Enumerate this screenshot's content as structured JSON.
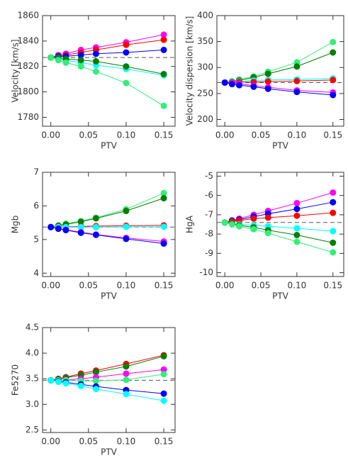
{
  "chart_data": [
    {
      "type": "line",
      "xlabel": "PTV",
      "ylabel": "Velocity [km/s]",
      "x": [
        0,
        0.01,
        0.02,
        0.04,
        0.06,
        0.1,
        0.15
      ],
      "xlim": [
        -0.011,
        0.165
      ],
      "xticks": [
        {
          "value": 0,
          "label": "0.00"
        },
        0.05,
        {
          "value": 0.1,
          "label": "0.10"
        },
        0.15
      ],
      "ylim": [
        1773,
        1860
      ],
      "yticks": [
        1780,
        1800,
        1820,
        1840,
        1860
      ],
      "hline": 1827,
      "series": [
        {
          "color": "#ff00ff",
          "values": [
            1827,
            1829,
            1830,
            1833,
            1835,
            1839,
            1845
          ]
        },
        {
          "color": "#ff0000",
          "values": [
            1827,
            1828,
            1829,
            1831,
            1833,
            1837,
            1841
          ]
        },
        {
          "color": "#0000ff",
          "values": [
            1827,
            1828,
            1828,
            1829,
            1830,
            1831,
            1833
          ]
        },
        {
          "color": "#00ffff",
          "values": [
            1827,
            1826,
            1825,
            1823,
            1821,
            1818,
            1813
          ]
        },
        {
          "color": "#008000",
          "values": [
            1827,
            1827,
            1826,
            1825,
            1824,
            1820,
            1814
          ]
        },
        {
          "color": "#33ee77",
          "values": [
            1827,
            1825,
            1823,
            1820,
            1816,
            1807,
            1789
          ]
        }
      ]
    },
    {
      "type": "line",
      "xlabel": "PTV",
      "ylabel": "Velocity dispersion [km/s]",
      "x": [
        0,
        0.01,
        0.02,
        0.04,
        0.06,
        0.1,
        0.15
      ],
      "xlim": [
        -0.011,
        0.165
      ],
      "xticks": [
        {
          "value": 0,
          "label": "0.00"
        },
        0.05,
        {
          "value": 0.1,
          "label": "0.10"
        },
        0.15
      ],
      "ylim": [
        187,
        400
      ],
      "yticks": [
        200,
        250,
        300,
        350,
        400
      ],
      "hline": 271,
      "series": [
        {
          "color": "#33ee77",
          "values": [
            271,
            273,
            277,
            283,
            292,
            310,
            349
          ]
        },
        {
          "color": "#008000",
          "values": [
            271,
            273,
            275,
            281,
            288,
            302,
            329
          ]
        },
        {
          "color": "#00ffff",
          "values": [
            271,
            272,
            273,
            275,
            276,
            277,
            279
          ]
        },
        {
          "color": "#ff0000",
          "values": [
            271,
            271,
            272,
            272,
            273,
            274,
            276
          ]
        },
        {
          "color": "#ff00ff",
          "values": [
            271,
            270,
            269,
            265,
            262,
            256,
            252
          ]
        },
        {
          "color": "#0000ff",
          "values": [
            271,
            268,
            266,
            263,
            259,
            253,
            247
          ]
        }
      ]
    },
    {
      "type": "line",
      "xlabel": "PTV",
      "ylabel": "Mgb",
      "x": [
        0,
        0.01,
        0.02,
        0.04,
        0.06,
        0.1,
        0.15
      ],
      "xlim": [
        -0.011,
        0.165
      ],
      "xticks": [
        {
          "value": 0,
          "label": "0.00"
        },
        0.05,
        {
          "value": 0.1,
          "label": "0.10"
        },
        0.15
      ],
      "ylim": [
        3.9,
        7
      ],
      "yticks": [
        4,
        5,
        6,
        7
      ],
      "hline": 5.37,
      "series": [
        {
          "color": "#33ee77",
          "values": [
            5.37,
            5.42,
            5.47,
            5.55,
            5.65,
            5.9,
            6.38
          ]
        },
        {
          "color": "#008000",
          "values": [
            5.37,
            5.41,
            5.45,
            5.53,
            5.63,
            5.85,
            6.23
          ]
        },
        {
          "color": "#ff0000",
          "values": [
            5.37,
            5.38,
            5.38,
            5.39,
            5.4,
            5.41,
            5.42
          ]
        },
        {
          "color": "#00ffff",
          "values": [
            5.37,
            5.37,
            5.37,
            5.37,
            5.37,
            5.38,
            5.38
          ]
        },
        {
          "color": "#ff00ff",
          "values": [
            5.37,
            5.33,
            5.29,
            5.22,
            5.15,
            5.05,
            4.94
          ]
        },
        {
          "color": "#0000ff",
          "values": [
            5.37,
            5.32,
            5.28,
            5.2,
            5.14,
            5.02,
            4.88
          ]
        }
      ]
    },
    {
      "type": "line",
      "xlabel": "PTV",
      "ylabel": "HgA",
      "x": [
        0,
        0.01,
        0.02,
        0.04,
        0.06,
        0.1,
        0.15
      ],
      "xlim": [
        -0.011,
        0.165
      ],
      "xticks": [
        {
          "value": 0,
          "label": "0.00"
        },
        0.05,
        {
          "value": 0.1,
          "label": "0.10"
        },
        0.15
      ],
      "ylim": [
        -10.2,
        -4.8
      ],
      "yticks": [
        -10,
        -9,
        -8,
        -7,
        -6,
        -5
      ],
      "hline": -7.4,
      "series": [
        {
          "color": "#ff00ff",
          "values": [
            -7.4,
            -7.3,
            -7.2,
            -7.0,
            -6.8,
            -6.4,
            -5.85
          ]
        },
        {
          "color": "#0000ff",
          "values": [
            -7.4,
            -7.3,
            -7.25,
            -7.1,
            -6.95,
            -6.7,
            -6.35
          ]
        },
        {
          "color": "#ff0000",
          "values": [
            -7.4,
            -7.35,
            -7.3,
            -7.2,
            -7.15,
            -7.05,
            -6.9
          ]
        },
        {
          "color": "#00ffff",
          "values": [
            -7.4,
            -7.45,
            -7.5,
            -7.55,
            -7.6,
            -7.7,
            -7.85
          ]
        },
        {
          "color": "#008000",
          "values": [
            -7.4,
            -7.45,
            -7.55,
            -7.65,
            -7.8,
            -8.05,
            -8.45
          ]
        },
        {
          "color": "#33ee77",
          "values": [
            -7.4,
            -7.5,
            -7.6,
            -7.75,
            -7.95,
            -8.4,
            -8.95
          ]
        }
      ]
    },
    {
      "type": "line",
      "xlabel": "PTV",
      "ylabel": "Fe5270",
      "x": [
        0,
        0.01,
        0.02,
        0.04,
        0.06,
        0.1,
        0.15
      ],
      "xlim": [
        -0.011,
        0.165
      ],
      "xticks": [
        {
          "value": 0,
          "label": "0.00"
        },
        0.05,
        {
          "value": 0.1,
          "label": "0.10"
        },
        0.15
      ],
      "ylim": [
        2.45,
        4.5
      ],
      "yticks": [
        2.5,
        {
          "value": 3,
          "label": "3.0"
        },
        3.5,
        {
          "value": 4,
          "label": "4.0"
        },
        4.5
      ],
      "hline": 3.47,
      "series": [
        {
          "color": "#ff0000",
          "values": [
            3.47,
            3.5,
            3.53,
            3.6,
            3.66,
            3.79,
            3.96
          ]
        },
        {
          "color": "#008000",
          "values": [
            3.47,
            3.49,
            3.52,
            3.57,
            3.63,
            3.74,
            3.94
          ]
        },
        {
          "color": "#ff00ff",
          "values": [
            3.47,
            3.47,
            3.48,
            3.5,
            3.53,
            3.6,
            3.68
          ]
        },
        {
          "color": "#33ee77",
          "values": [
            3.47,
            3.47,
            3.47,
            3.46,
            3.46,
            3.48,
            3.59
          ]
        },
        {
          "color": "#0000ff",
          "values": [
            3.47,
            3.45,
            3.43,
            3.39,
            3.35,
            3.28,
            3.21
          ]
        },
        {
          "color": "#00ffff",
          "values": [
            3.47,
            3.44,
            3.41,
            3.36,
            3.3,
            3.2,
            3.07
          ]
        }
      ]
    }
  ]
}
